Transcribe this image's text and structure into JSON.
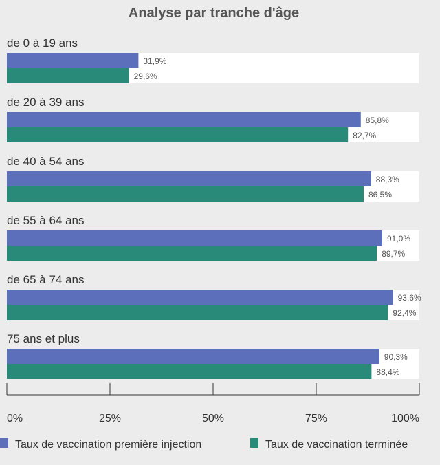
{
  "chart_data": {
    "type": "bar",
    "orientation": "horizontal",
    "title": "Analyse par tranche d'âge",
    "categories": [
      "de 0 à 19 ans",
      "de 20 à 39 ans",
      "de 40 à 54 ans",
      "de 55 à 64 ans",
      "de 65 à 74 ans",
      "75 ans et plus"
    ],
    "series": [
      {
        "name": "Taux de vaccination première injection",
        "color": "#5c6fbb",
        "values": [
          31.9,
          85.8,
          88.3,
          91.0,
          93.6,
          90.3
        ],
        "labels": [
          "31,9%",
          "85,8%",
          "88,3%",
          "91,0%",
          "93,6%",
          "90,3%"
        ]
      },
      {
        "name": "Taux de vaccination terminée",
        "color": "#2a8a79",
        "values": [
          29.6,
          82.7,
          86.5,
          89.7,
          92.4,
          88.4
        ],
        "labels": [
          "29,6%",
          "82,7%",
          "86,5%",
          "89,7%",
          "92,4%",
          "88,4%"
        ]
      }
    ],
    "xlim": [
      0,
      100
    ],
    "xticks": [
      "0%",
      "25%",
      "50%",
      "75%",
      "100%"
    ],
    "legend_position": "bottom",
    "grid": false
  }
}
